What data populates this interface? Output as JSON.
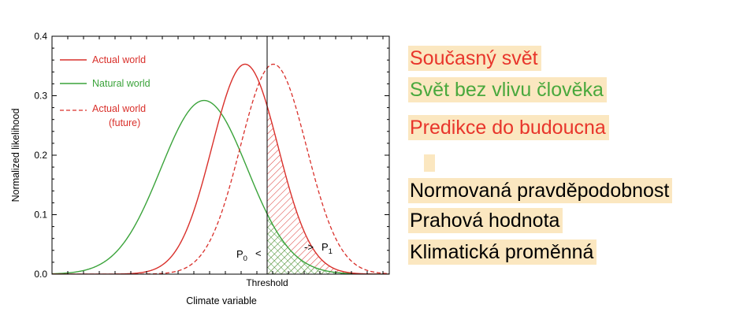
{
  "chart_data": {
    "type": "line",
    "ylabel": "Normalized likelihood",
    "xlabel": "Climate variable",
    "ylim": [
      0,
      0.4
    ],
    "yticks": [
      "0.0",
      "0.1",
      "0.2",
      "0.3",
      "0.4"
    ],
    "threshold_label": "Threshold",
    "grid": false,
    "legend_position": "top-left",
    "series": [
      {
        "name": "Actual world",
        "color": "#d9302b",
        "style": "solid",
        "peak": 0.353
      },
      {
        "name": "Natural world",
        "color": "#3aa33a",
        "style": "solid",
        "peak": 0.292
      },
      {
        "name": "Actual world",
        "name_line2": "(future)",
        "color": "#d9302b",
        "style": "dashed",
        "peak": 0.353
      }
    ],
    "annotations": {
      "p0_base": "P",
      "p0_sub": "0",
      "p0_arrow": "<",
      "p1_base": "P",
      "p1_sub": "1",
      "p1_arrow": "->"
    }
  },
  "translations": {
    "current_world": "Současný svět",
    "natural_world": "Svět bez vlivu člověka",
    "future_prediction": "Predikce do budoucna",
    "normalized_likelihood": "Normovaná pravděpodobnost",
    "threshold": "Prahová hodnota",
    "climate_variable": "Klimatická proměnná"
  }
}
